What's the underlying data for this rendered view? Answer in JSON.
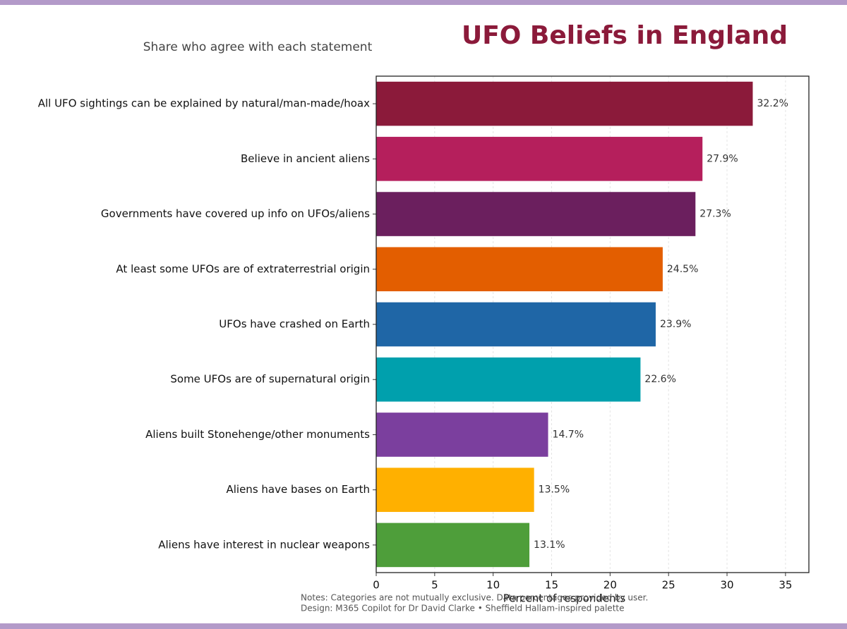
{
  "chart_data": {
    "type": "hbar",
    "title": "UFO Beliefs in England",
    "subtitle": "Share who agree with each statement",
    "x_label": "Percent of respondents",
    "notes": [
      "Notes: Categories are not mutually exclusive. Data percentages provided by user.",
      "Design: M365 Copilot for Dr David Clarke • Sheffield Hallam-inspired palette"
    ],
    "categories": [
      "All UFO sightings can be explained by natural/man-made/hoax",
      "Believe in ancient aliens",
      "Governments have covered up info on UFOs/aliens",
      "At least some UFOs are of extraterrestrial origin",
      "UFOs have crashed on Earth",
      "Some UFOs are of supernatural origin",
      "Aliens built Stonehenge/other monuments",
      "Aliens have bases on Earth",
      "Aliens have interest in nuclear weapons"
    ],
    "values": [
      32.2,
      27.9,
      27.3,
      24.5,
      23.9,
      22.6,
      14.7,
      13.5,
      13.1
    ],
    "value_labels": [
      "32.2%",
      "27.9%",
      "27.3%",
      "24.5%",
      "23.9%",
      "22.6%",
      "14.7%",
      "13.5%",
      "13.1%"
    ],
    "colors": [
      "#8b1a3a",
      "#b51f5c",
      "#6b1f5e",
      "#e35e00",
      "#1f66a6",
      "#00a0ad",
      "#7b3f9e",
      "#ffb000",
      "#4e9e3a"
    ],
    "xlim": [
      0,
      37
    ],
    "xticks": [
      0,
      5,
      10,
      15,
      20,
      25,
      30,
      35
    ],
    "grid": true
  }
}
